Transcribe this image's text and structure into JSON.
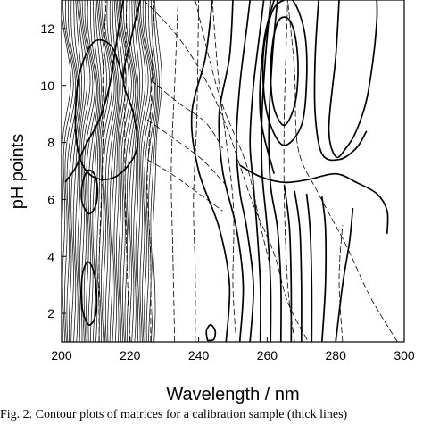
{
  "chart_data": {
    "type": "contour",
    "title": "",
    "xlabel": "Wavelength / nm",
    "ylabel": "pH points",
    "xlim": [
      200,
      300
    ],
    "ylim": [
      1,
      13
    ],
    "x_ticks": [
      200,
      220,
      240,
      260,
      280,
      300
    ],
    "y_ticks": [
      2,
      4,
      6,
      8,
      10,
      12
    ],
    "grid": false,
    "legend": "none",
    "series": [
      {
        "style": "solid-thick",
        "points": [
          [
            248,
            1
          ],
          [
            249,
            3
          ],
          [
            246,
            5
          ],
          [
            240,
            7
          ],
          [
            238,
            9
          ],
          [
            242,
            11
          ],
          [
            244,
            13
          ]
        ]
      },
      {
        "style": "solid-thick",
        "points": [
          [
            252,
            1
          ],
          [
            253,
            3
          ],
          [
            251,
            5
          ],
          [
            247,
            7
          ],
          [
            246,
            9
          ],
          [
            249,
            11
          ],
          [
            250,
            13
          ]
        ]
      },
      {
        "style": "solid-thick",
        "points": [
          [
            255,
            1
          ],
          [
            256,
            3
          ],
          [
            254,
            5
          ],
          [
            252,
            6.3
          ],
          [
            251,
            8
          ],
          [
            252,
            10
          ],
          [
            254,
            12
          ],
          [
            255,
            13
          ]
        ]
      },
      {
        "style": "solid-thick",
        "points": [
          [
            258,
            1
          ],
          [
            258,
            3
          ],
          [
            257,
            5
          ],
          [
            256,
            6.5
          ],
          [
            255,
            8
          ],
          [
            256,
            10
          ],
          [
            258,
            12
          ],
          [
            259,
            13
          ]
        ]
      },
      {
        "style": "solid-thick",
        "points": [
          [
            261,
            1
          ],
          [
            261,
            3
          ],
          [
            260,
            5
          ],
          [
            258.5,
            7
          ],
          [
            258.5,
            9
          ],
          [
            259.5,
            11
          ],
          [
            261,
            13
          ]
        ]
      },
      {
        "style": "solid-thick",
        "points": [
          [
            264,
            1
          ],
          [
            264,
            3
          ],
          [
            263,
            5
          ],
          [
            261,
            6.5
          ],
          [
            260.5,
            8.5
          ],
          [
            261.5,
            11
          ],
          [
            263,
            13
          ]
        ]
      },
      {
        "style": "solid-thick",
        "points": [
          [
            267,
            1
          ],
          [
            267,
            3
          ],
          [
            266.5,
            5
          ],
          [
            265,
            6.5
          ]
        ]
      },
      {
        "style": "solid-thick",
        "points": [
          [
            270,
            1
          ],
          [
            270,
            3
          ],
          [
            269.5,
            5
          ],
          [
            268,
            6.3
          ]
        ]
      },
      {
        "style": "solid-thick",
        "points": [
          [
            273,
            1
          ],
          [
            273,
            3
          ],
          [
            272.5,
            5
          ],
          [
            271.5,
            6.2
          ]
        ]
      },
      {
        "style": "solid-thick",
        "points": [
          [
            276,
            1
          ],
          [
            277,
            3
          ],
          [
            277,
            5
          ],
          [
            276,
            6.1
          ]
        ]
      },
      {
        "style": "solid-thick",
        "points": [
          [
            280,
            1
          ],
          [
            282,
            3
          ],
          [
            284,
            4.5
          ],
          [
            285,
            5.7
          ]
        ]
      },
      {
        "style": "solid-thick",
        "points": [
          [
            252,
            7.2
          ],
          [
            258,
            6.8
          ],
          [
            265,
            6.6
          ],
          [
            272,
            6.7
          ],
          [
            280,
            6.9
          ],
          [
            286,
            6.6
          ],
          [
            292,
            6.2
          ],
          [
            295,
            5.6
          ],
          [
            295,
            4.8
          ]
        ]
      },
      {
        "style": "solid-thick",
        "points": [
          [
            262,
            6.9
          ],
          [
            258,
            9
          ],
          [
            259,
            11.5
          ],
          [
            262,
            13
          ]
        ]
      },
      {
        "style": "solid-thick",
        "points": [
          [
            281,
            13
          ],
          [
            280,
            11
          ],
          [
            278,
            8.5
          ],
          [
            280,
            7.5
          ],
          [
            283,
            7.8
          ],
          [
            286,
            8.4
          ],
          [
            289,
            9.5
          ],
          [
            291,
            11
          ],
          [
            292,
            12.3
          ],
          [
            292,
            13
          ]
        ]
      },
      {
        "style": "solid-thick",
        "points": [
          [
            275,
            13
          ],
          [
            274,
            11
          ],
          [
            274,
            9
          ],
          [
            276,
            7.6
          ],
          [
            281,
            7.4
          ],
          [
            286,
            7.8
          ],
          [
            289,
            8.4
          ]
        ]
      },
      {
        "style": "solid-thick",
        "closed": true,
        "points": [
          [
            265,
            8.6
          ],
          [
            268,
            9.3
          ],
          [
            269,
            10.4
          ],
          [
            268.5,
            11.5
          ],
          [
            267,
            12.2
          ],
          [
            265,
            12.4
          ],
          [
            263,
            12.2
          ],
          [
            261.5,
            11.4
          ],
          [
            261,
            10.3
          ],
          [
            262,
            9.2
          ]
        ]
      },
      {
        "style": "solid-thick",
        "closed": true,
        "points": [
          [
            265,
            7.9
          ],
          [
            270,
            8.6
          ],
          [
            271.5,
            10.2
          ],
          [
            271,
            11.8
          ],
          [
            268,
            12.9
          ],
          [
            265,
            13
          ],
          [
            261.5,
            12.6
          ],
          [
            259,
            11.3
          ],
          [
            259,
            9.8
          ],
          [
            261,
            8.6
          ]
        ]
      },
      {
        "style": "solid-thick",
        "points": [
          [
            218,
            13
          ],
          [
            216,
            11.5
          ],
          [
            214,
            10
          ],
          [
            211,
            8.8
          ],
          [
            207,
            7.9
          ],
          [
            204,
            7.1
          ],
          [
            201,
            6.6
          ]
        ]
      },
      {
        "style": "solid-thick",
        "points": [
          [
            223,
            13
          ],
          [
            220,
            11.5
          ],
          [
            218,
            10.2
          ],
          [
            221,
            9
          ],
          [
            222,
            7.8
          ],
          [
            218,
            7
          ],
          [
            213,
            6.7
          ],
          [
            208,
            6.9
          ],
          [
            205,
            7.6
          ],
          [
            204,
            8.8
          ],
          [
            205,
            10.3
          ],
          [
            208,
            11.3
          ],
          [
            211,
            11.6
          ],
          [
            215,
            11.3
          ],
          [
            218,
            10.2
          ]
        ]
      },
      {
        "style": "solid-thick",
        "closed": true,
        "points": [
          [
            208,
            5.5
          ],
          [
            210,
            5.8
          ],
          [
            210.5,
            6.4
          ],
          [
            209.5,
            6.9
          ],
          [
            207.5,
            7
          ],
          [
            206,
            6.5
          ],
          [
            206,
            5.9
          ]
        ]
      },
      {
        "style": "solid-thick",
        "closed": true,
        "points": [
          [
            208,
            1.6
          ],
          [
            210,
            2
          ],
          [
            210,
            3
          ],
          [
            209,
            3.6
          ],
          [
            207.5,
            3.8
          ],
          [
            206,
            3.3
          ],
          [
            206,
            2.2
          ]
        ]
      },
      {
        "style": "solid-thick",
        "closed": true,
        "points": [
          [
            243,
            1.05
          ],
          [
            244.5,
            1.1
          ],
          [
            244.8,
            1.4
          ],
          [
            243.5,
            1.6
          ],
          [
            242.3,
            1.4
          ],
          [
            242.5,
            1.1
          ]
        ]
      },
      {
        "style": "dashed-thin",
        "points": [
          [
            211,
            1
          ],
          [
            211,
            4
          ],
          [
            212,
            7.5
          ],
          [
            212,
            10
          ],
          [
            213,
            13
          ]
        ]
      },
      {
        "style": "dashed-thin",
        "points": [
          [
            220,
            1
          ],
          [
            219,
            4
          ],
          [
            218.5,
            7
          ],
          [
            218.5,
            10
          ],
          [
            219,
            13
          ]
        ]
      },
      {
        "style": "dashed-thin",
        "points": [
          [
            226,
            1
          ],
          [
            226,
            4
          ],
          [
            225,
            6.5
          ],
          [
            226,
            9
          ],
          [
            227,
            13
          ]
        ]
      },
      {
        "style": "dashed-thin",
        "points": [
          [
            233,
            1
          ],
          [
            232.5,
            4
          ],
          [
            232,
            7
          ],
          [
            233,
            10
          ],
          [
            234,
            13
          ]
        ]
      },
      {
        "style": "dashed-thin",
        "points": [
          [
            239,
            1
          ],
          [
            239,
            3.5
          ],
          [
            238.5,
            6
          ],
          [
            239.5,
            9
          ],
          [
            240,
            13
          ]
        ]
      },
      {
        "style": "dashed-thin",
        "points": [
          [
            251,
            1
          ],
          [
            250,
            3
          ],
          [
            250,
            6
          ],
          [
            246,
            10
          ],
          [
            244,
            13
          ]
        ]
      },
      {
        "style": "dashed-thin",
        "points": [
          [
            268,
            1
          ],
          [
            266,
            3
          ],
          [
            265,
            6
          ],
          [
            265,
            9
          ],
          [
            266,
            13
          ]
        ]
      },
      {
        "style": "dashed-thin",
        "points": [
          [
            282,
            1
          ],
          [
            281,
            3.2
          ],
          [
            282,
            5.1
          ]
        ]
      },
      {
        "style": "dashed-thin",
        "points": [
          [
            298,
            1
          ],
          [
            290,
            2.6
          ],
          [
            283,
            4.4
          ],
          [
            275,
            6.2
          ],
          [
            269,
            7.8
          ],
          [
            268,
            10.5
          ],
          [
            266,
            13
          ]
        ]
      },
      {
        "style": "dashed-thin",
        "points": [
          [
            224,
            13
          ],
          [
            234,
            11.7
          ],
          [
            242,
            10.2
          ],
          [
            248,
            8.6
          ],
          [
            252,
            7.2
          ],
          [
            256,
            5.8
          ],
          [
            262,
            4.1
          ],
          [
            266,
            2.4
          ],
          [
            272,
            1
          ]
        ]
      },
      {
        "style": "dashed-thin",
        "points": [
          [
            239,
            13
          ],
          [
            243,
            11
          ],
          [
            247,
            9.3
          ],
          [
            254,
            7.2
          ],
          [
            258,
            5.1
          ],
          [
            261,
            3.6
          ]
        ]
      },
      {
        "style": "dashed-thin",
        "points": [
          [
            226,
            10.2
          ],
          [
            234,
            9.4
          ],
          [
            242,
            8.7
          ],
          [
            247,
            7.8
          ]
        ]
      },
      {
        "style": "dashed-thin",
        "points": [
          [
            225,
            8.8
          ],
          [
            232,
            8.2
          ],
          [
            241,
            7.4
          ],
          [
            248,
            6.5
          ]
        ]
      },
      {
        "style": "dashed-thin",
        "points": [
          [
            225,
            7.4
          ],
          [
            232,
            6.9
          ],
          [
            239,
            6.3
          ],
          [
            247,
            5.6
          ]
        ]
      }
    ],
    "dense_band": {
      "x_range": [
        200,
        227
      ],
      "count": 44,
      "style": "solid-thin",
      "bulge_pH": 10,
      "bulge_nm": 2.5
    }
  },
  "caption": {
    "text": "Fig. 2.   Contour plots of matrices for a calibration sample (thick lines)"
  }
}
